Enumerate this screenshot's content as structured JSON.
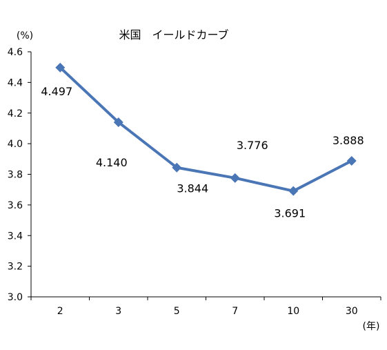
{
  "chart_data": {
    "type": "line",
    "title": "米国　イールドカーブ",
    "yunit": "(%)",
    "xunit": "(年)",
    "categories": [
      "2",
      "3",
      "5",
      "7",
      "10",
      "30"
    ],
    "series": [
      {
        "values": [
          4.497,
          4.14,
          3.844,
          3.776,
          3.691,
          3.888
        ]
      }
    ],
    "data_labels": [
      "4.497",
      "4.140",
      "3.844",
      "3.776",
      "3.691",
      "3.888"
    ],
    "ylim": [
      3.0,
      4.6
    ],
    "yticks": [
      "3.0",
      "3.2",
      "3.4",
      "3.6",
      "3.8",
      "4.0",
      "4.2",
      "4.4",
      "4.6"
    ],
    "grid": false,
    "legend": "none",
    "line_color": "#4a76b5",
    "marker": "diamond"
  }
}
